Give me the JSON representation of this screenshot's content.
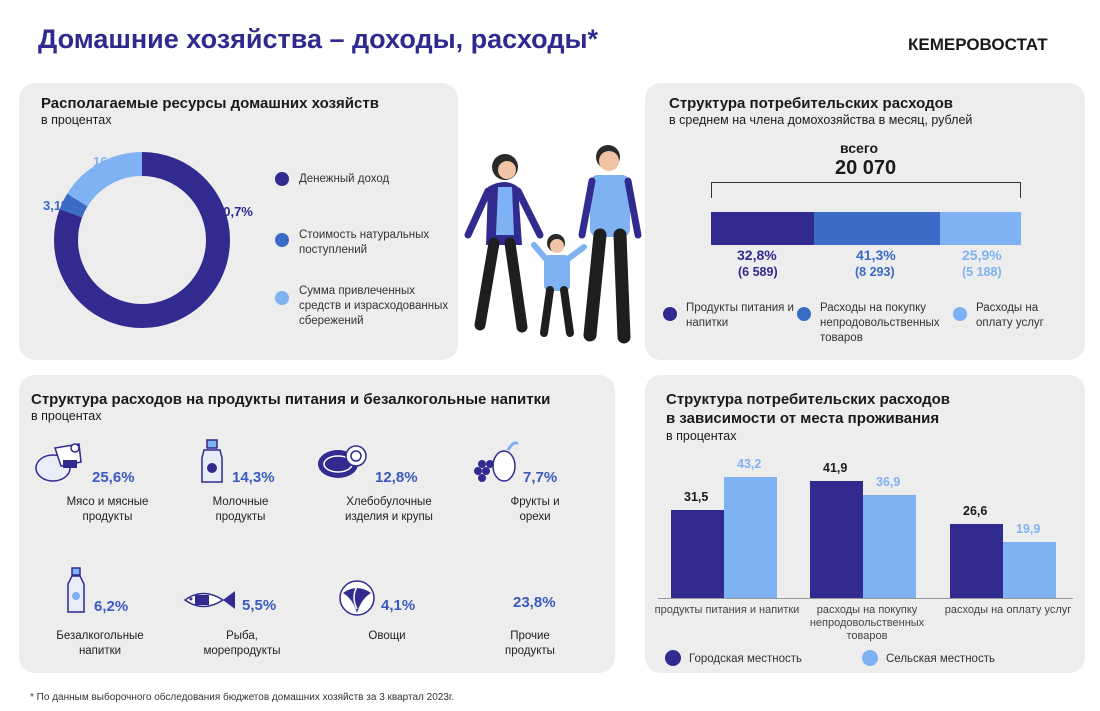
{
  "header": {
    "title": "Домашние хозяйства – доходы, расходы*",
    "brand": "КЕМЕРОВОСТАТ"
  },
  "colors": {
    "dark": "#312a8f",
    "mid": "#3a6cc6",
    "light": "#7fb2f2",
    "accent_text": "#3a5bbf"
  },
  "resources": {
    "title": "Располагаемые ресурсы домашних хозяйств",
    "subtitle": "в процентах",
    "items": [
      {
        "label": "Денежный доход",
        "value": "80,7%"
      },
      {
        "label": "Стоимость натуральных поступлений",
        "value": "3,1%"
      },
      {
        "label": "Сумма привлеченных средств и израсходованных сбережений",
        "value": "16,2%"
      }
    ]
  },
  "consumer": {
    "title": "Структура потребительских расходов",
    "subtitle": "в среднем на члена домохозяйства в месяц, рублей",
    "total_label": "всего",
    "total_value": "20 070",
    "segments": [
      {
        "pct": "32,8%",
        "value": "(6 589)",
        "label": "Продукты питания и напитки"
      },
      {
        "pct": "41,3%",
        "value": "(8 293)",
        "label": "Расходы на покупку непродовольственных товаров"
      },
      {
        "pct": "25,9%",
        "value": "(5 188)",
        "label": "Расходы на оплату услуг"
      }
    ]
  },
  "food": {
    "title": "Структура расходов на продукты питания и безалкогольные напитки",
    "subtitle": "в процентах",
    "items": [
      {
        "pct": "25,6%",
        "label": "Мясо и мясные продукты",
        "icon": "meat-icon"
      },
      {
        "pct": "14,3%",
        "label": "Молочные продукты",
        "icon": "milk-icon"
      },
      {
        "pct": "12,8%",
        "label": "Хлебобулочные изделия и крупы",
        "icon": "bread-icon"
      },
      {
        "pct": "7,7%",
        "label": "Фрукты и орехи",
        "icon": "fruit-icon"
      },
      {
        "pct": "6,2%",
        "label": "Безалкогольные напитки",
        "icon": "bottle-icon"
      },
      {
        "pct": "5,5%",
        "label": "Рыба, морепродукты",
        "icon": "fish-icon"
      },
      {
        "pct": "4,1%",
        "label": "Овощи",
        "icon": "cabbage-icon"
      },
      {
        "pct": "23,8%",
        "label": "Прочие продукты",
        "icon": ""
      }
    ]
  },
  "residence": {
    "title_line1": "Структура потребительских расходов",
    "title_line2": "в зависимости от места проживания",
    "subtitle": "в процентах",
    "legend_urban": "Городская местность",
    "legend_rural": "Сельская местность"
  },
  "chart_data": {
    "type": "bar",
    "categories": [
      "продукты питания и напитки",
      "расходы на покупку непродовольственных товаров",
      "расходы на оплату услуг"
    ],
    "series": [
      {
        "name": "Городская местность",
        "values": [
          31.5,
          41.9,
          26.6
        ],
        "labels": [
          "31,5",
          "41,9",
          "26,6"
        ]
      },
      {
        "name": "Сельская местность",
        "values": [
          43.2,
          36.9,
          19.9
        ],
        "labels": [
          "43,2",
          "36,9",
          "19,9"
        ]
      }
    ]
  },
  "footnote": "* По данным выборочного обследования бюджетов домашних хозяйств за 3 квартал 2023г."
}
